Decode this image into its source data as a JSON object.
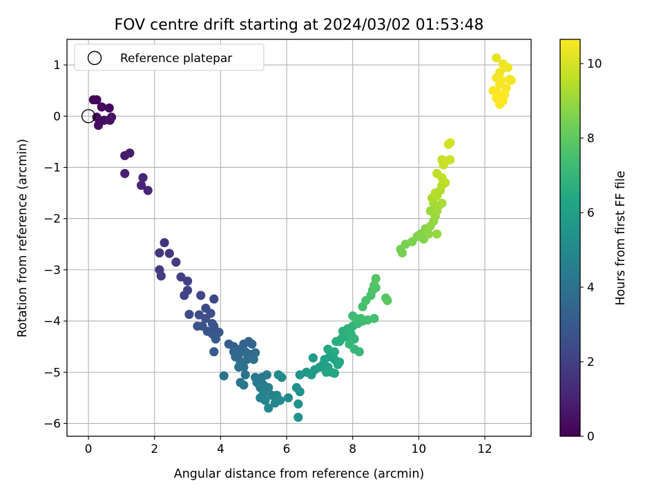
{
  "chart_data": {
    "type": "scatter",
    "title": "FOV centre drift starting at 2024/03/02 01:53:48",
    "xlabel": "Angular distance from reference (arcmin)",
    "ylabel": "Rotation from reference (arcmin)",
    "xlim": [
      -0.65,
      13.4
    ],
    "ylim": [
      -6.25,
      1.5
    ],
    "x_ticks": [
      "0",
      "2",
      "4",
      "6",
      "8",
      "10",
      "12"
    ],
    "y_ticks": [
      "1",
      "0",
      "−1",
      "−2",
      "−3",
      "−4",
      "−5",
      "−6"
    ],
    "grid": true,
    "legend": {
      "placement": "top-left",
      "label": "Reference platepar"
    },
    "reference_point": {
      "x": 0,
      "y": 0
    },
    "colorbar": {
      "label": "Hours from first FF file",
      "colormap": "viridis",
      "range": [
        0,
        10.65
      ],
      "ticks": [
        "0",
        "2",
        "4",
        "6",
        "8",
        "10"
      ]
    },
    "points": [
      {
        "x": 0.15,
        "y": 0.32,
        "t": 0.1
      },
      {
        "x": 0.25,
        "y": 0.32,
        "t": 0.15
      },
      {
        "x": 0.4,
        "y": 0.18,
        "t": 0.2
      },
      {
        "x": 0.63,
        "y": 0.16,
        "t": 0.25
      },
      {
        "x": 0.25,
        "y": -0.02,
        "t": 0.3
      },
      {
        "x": 0.35,
        "y": -0.1,
        "t": 0.35
      },
      {
        "x": 0.48,
        "y": -0.08,
        "t": 0.38
      },
      {
        "x": 0.3,
        "y": -0.18,
        "t": 0.4
      },
      {
        "x": 0.7,
        "y": -0.02,
        "t": 0.45
      },
      {
        "x": 0.65,
        "y": -0.08,
        "t": 0.5
      },
      {
        "x": 1.1,
        "y": -0.77,
        "t": 0.8
      },
      {
        "x": 1.25,
        "y": -0.72,
        "t": 0.85
      },
      {
        "x": 1.1,
        "y": -1.12,
        "t": 0.95
      },
      {
        "x": 1.65,
        "y": -1.2,
        "t": 1.05
      },
      {
        "x": 1.6,
        "y": -1.35,
        "t": 1.1
      },
      {
        "x": 1.8,
        "y": -1.45,
        "t": 1.15
      },
      {
        "x": 2.3,
        "y": -2.47,
        "t": 1.6
      },
      {
        "x": 2.15,
        "y": -2.67,
        "t": 1.65
      },
      {
        "x": 2.45,
        "y": -2.68,
        "t": 1.7
      },
      {
        "x": 2.65,
        "y": -2.85,
        "t": 1.8
      },
      {
        "x": 2.15,
        "y": -3.0,
        "t": 1.85
      },
      {
        "x": 2.2,
        "y": -3.12,
        "t": 1.9
      },
      {
        "x": 2.8,
        "y": -3.14,
        "t": 2.0
      },
      {
        "x": 3.0,
        "y": -3.22,
        "t": 2.05
      },
      {
        "x": 3.0,
        "y": -3.4,
        "t": 2.1
      },
      {
        "x": 2.9,
        "y": -3.5,
        "t": 2.15
      },
      {
        "x": 3.4,
        "y": -3.5,
        "t": 2.25
      },
      {
        "x": 3.8,
        "y": -3.57,
        "t": 2.3
      },
      {
        "x": 3.55,
        "y": -3.75,
        "t": 2.4
      },
      {
        "x": 3.35,
        "y": -3.88,
        "t": 2.45
      },
      {
        "x": 3.05,
        "y": -3.87,
        "t": 2.5
      },
      {
        "x": 3.7,
        "y": -3.85,
        "t": 2.55
      },
      {
        "x": 3.55,
        "y": -3.95,
        "t": 2.6
      },
      {
        "x": 3.75,
        "y": -4.05,
        "t": 2.65
      },
      {
        "x": 3.3,
        "y": -4.1,
        "t": 2.7
      },
      {
        "x": 3.45,
        "y": -4.1,
        "t": 2.75
      },
      {
        "x": 3.8,
        "y": -4.1,
        "t": 2.8
      },
      {
        "x": 3.6,
        "y": -4.2,
        "t": 2.85
      },
      {
        "x": 3.75,
        "y": -4.25,
        "t": 2.9
      },
      {
        "x": 3.95,
        "y": -4.22,
        "t": 2.95
      },
      {
        "x": 3.85,
        "y": -4.35,
        "t": 3.0
      },
      {
        "x": 3.8,
        "y": -4.6,
        "t": 3.05
      },
      {
        "x": 4.25,
        "y": -4.45,
        "t": 3.2
      },
      {
        "x": 4.4,
        "y": -4.5,
        "t": 3.25
      },
      {
        "x": 4.7,
        "y": -4.45,
        "t": 3.3
      },
      {
        "x": 4.85,
        "y": -4.4,
        "t": 3.35
      },
      {
        "x": 4.95,
        "y": -4.45,
        "t": 3.4
      },
      {
        "x": 4.6,
        "y": -4.55,
        "t": 3.45
      },
      {
        "x": 4.55,
        "y": -4.65,
        "t": 3.5
      },
      {
        "x": 4.4,
        "y": -4.6,
        "t": 3.55
      },
      {
        "x": 4.45,
        "y": -4.7,
        "t": 3.6
      },
      {
        "x": 4.75,
        "y": -4.6,
        "t": 3.65
      },
      {
        "x": 4.9,
        "y": -4.65,
        "t": 3.7
      },
      {
        "x": 5.05,
        "y": -4.62,
        "t": 3.75
      },
      {
        "x": 4.8,
        "y": -4.75,
        "t": 3.8
      },
      {
        "x": 4.6,
        "y": -4.8,
        "t": 3.85
      },
      {
        "x": 5.0,
        "y": -4.75,
        "t": 3.9
      },
      {
        "x": 4.7,
        "y": -4.9,
        "t": 3.95
      },
      {
        "x": 4.55,
        "y": -4.9,
        "t": 4.0
      },
      {
        "x": 4.1,
        "y": -5.07,
        "t": 4.05
      },
      {
        "x": 4.75,
        "y": -5.05,
        "t": 4.1
      },
      {
        "x": 5.05,
        "y": -5.1,
        "t": 4.15
      },
      {
        "x": 4.6,
        "y": -5.2,
        "t": 4.2
      },
      {
        "x": 4.7,
        "y": -5.25,
        "t": 4.25
      },
      {
        "x": 5.1,
        "y": -5.2,
        "t": 4.3
      },
      {
        "x": 5.25,
        "y": -5.1,
        "t": 4.35
      },
      {
        "x": 5.4,
        "y": -5.05,
        "t": 4.4
      },
      {
        "x": 5.3,
        "y": -5.25,
        "t": 4.45
      },
      {
        "x": 5.2,
        "y": -5.3,
        "t": 4.5
      },
      {
        "x": 5.45,
        "y": -5.3,
        "t": 4.55
      },
      {
        "x": 5.55,
        "y": -5.45,
        "t": 4.6
      },
      {
        "x": 5.3,
        "y": -5.4,
        "t": 4.65
      },
      {
        "x": 5.2,
        "y": -5.5,
        "t": 4.7
      },
      {
        "x": 5.35,
        "y": -5.55,
        "t": 4.75
      },
      {
        "x": 5.7,
        "y": -5.45,
        "t": 4.8
      },
      {
        "x": 5.65,
        "y": -5.6,
        "t": 4.85
      },
      {
        "x": 5.45,
        "y": -5.7,
        "t": 4.9
      },
      {
        "x": 5.8,
        "y": -5.55,
        "t": 4.95
      },
      {
        "x": 5.75,
        "y": -5.05,
        "t": 5.0
      },
      {
        "x": 5.85,
        "y": -5.1,
        "t": 5.05
      },
      {
        "x": 6.05,
        "y": -5.5,
        "t": 5.1
      },
      {
        "x": 6.3,
        "y": -5.3,
        "t": 5.3
      },
      {
        "x": 6.4,
        "y": -5.38,
        "t": 5.35
      },
      {
        "x": 6.35,
        "y": -5.62,
        "t": 5.4
      },
      {
        "x": 6.35,
        "y": -5.88,
        "t": 5.45
      },
      {
        "x": 6.4,
        "y": -5.05,
        "t": 5.5
      },
      {
        "x": 6.6,
        "y": -5.0,
        "t": 5.6
      },
      {
        "x": 6.75,
        "y": -5.05,
        "t": 5.7
      },
      {
        "x": 6.85,
        "y": -4.95,
        "t": 5.8
      },
      {
        "x": 6.8,
        "y": -4.72,
        "t": 5.85
      },
      {
        "x": 7.0,
        "y": -4.9,
        "t": 5.9
      },
      {
        "x": 7.1,
        "y": -4.85,
        "t": 5.95
      },
      {
        "x": 7.25,
        "y": -4.9,
        "t": 6.0
      },
      {
        "x": 7.15,
        "y": -4.75,
        "t": 6.05
      },
      {
        "x": 7.3,
        "y": -4.7,
        "t": 6.1
      },
      {
        "x": 7.45,
        "y": -4.75,
        "t": 6.15
      },
      {
        "x": 7.2,
        "y": -5.0,
        "t": 6.2
      },
      {
        "x": 7.35,
        "y": -5.0,
        "t": 6.25
      },
      {
        "x": 7.45,
        "y": -5.02,
        "t": 6.3
      },
      {
        "x": 7.55,
        "y": -4.85,
        "t": 6.35
      },
      {
        "x": 7.6,
        "y": -4.8,
        "t": 6.4
      },
      {
        "x": 7.25,
        "y": -4.55,
        "t": 6.45
      },
      {
        "x": 7.45,
        "y": -4.6,
        "t": 6.5
      },
      {
        "x": 7.6,
        "y": -4.4,
        "t": 6.55
      },
      {
        "x": 7.5,
        "y": -4.4,
        "t": 6.6
      },
      {
        "x": 7.65,
        "y": -4.35,
        "t": 6.65
      },
      {
        "x": 7.8,
        "y": -4.3,
        "t": 6.7
      },
      {
        "x": 7.7,
        "y": -4.2,
        "t": 6.75
      },
      {
        "x": 7.85,
        "y": -4.15,
        "t": 6.8
      },
      {
        "x": 8.0,
        "y": -4.1,
        "t": 6.85
      },
      {
        "x": 7.95,
        "y": -4.25,
        "t": 6.9
      },
      {
        "x": 8.05,
        "y": -4.35,
        "t": 6.95
      },
      {
        "x": 7.9,
        "y": -4.45,
        "t": 7.0
      },
      {
        "x": 8.05,
        "y": -4.55,
        "t": 7.05
      },
      {
        "x": 8.2,
        "y": -4.6,
        "t": 7.1
      },
      {
        "x": 8.15,
        "y": -4.05,
        "t": 7.15
      },
      {
        "x": 8.3,
        "y": -4.0,
        "t": 7.2
      },
      {
        "x": 8.0,
        "y": -3.9,
        "t": 7.25
      },
      {
        "x": 8.1,
        "y": -3.95,
        "t": 7.3
      },
      {
        "x": 8.25,
        "y": -3.95,
        "t": 7.35
      },
      {
        "x": 8.45,
        "y": -3.98,
        "t": 7.4
      },
      {
        "x": 8.65,
        "y": -3.95,
        "t": 7.45
      },
      {
        "x": 8.3,
        "y": -3.72,
        "t": 7.5
      },
      {
        "x": 8.4,
        "y": -3.6,
        "t": 7.55
      },
      {
        "x": 8.55,
        "y": -3.5,
        "t": 7.6
      },
      {
        "x": 8.6,
        "y": -3.4,
        "t": 7.65
      },
      {
        "x": 8.7,
        "y": -3.35,
        "t": 7.7
      },
      {
        "x": 8.65,
        "y": -3.3,
        "t": 7.75
      },
      {
        "x": 8.7,
        "y": -3.17,
        "t": 7.8
      },
      {
        "x": 9.0,
        "y": -3.55,
        "t": 7.85
      },
      {
        "x": 9.05,
        "y": -3.6,
        "t": 7.9
      },
      {
        "x": 9.45,
        "y": -2.6,
        "t": 8.4
      },
      {
        "x": 9.5,
        "y": -2.67,
        "t": 8.45
      },
      {
        "x": 9.6,
        "y": -2.5,
        "t": 8.5
      },
      {
        "x": 9.8,
        "y": -2.45,
        "t": 8.55
      },
      {
        "x": 9.95,
        "y": -2.35,
        "t": 8.6
      },
      {
        "x": 10.05,
        "y": -2.3,
        "t": 8.65
      },
      {
        "x": 10.15,
        "y": -2.4,
        "t": 8.7
      },
      {
        "x": 10.2,
        "y": -2.2,
        "t": 8.75
      },
      {
        "x": 10.3,
        "y": -2.3,
        "t": 8.8
      },
      {
        "x": 10.35,
        "y": -2.15,
        "t": 8.85
      },
      {
        "x": 10.45,
        "y": -2.05,
        "t": 8.9
      },
      {
        "x": 10.55,
        "y": -2.3,
        "t": 8.95
      },
      {
        "x": 10.5,
        "y": -1.95,
        "t": 9.0
      },
      {
        "x": 10.35,
        "y": -1.85,
        "t": 9.05
      },
      {
        "x": 10.55,
        "y": -1.85,
        "t": 9.1
      },
      {
        "x": 10.6,
        "y": -1.75,
        "t": 9.15
      },
      {
        "x": 10.45,
        "y": -1.7,
        "t": 9.2
      },
      {
        "x": 10.7,
        "y": -1.7,
        "t": 9.25
      },
      {
        "x": 10.4,
        "y": -1.6,
        "t": 9.3
      },
      {
        "x": 10.55,
        "y": -1.55,
        "t": 9.35
      },
      {
        "x": 10.65,
        "y": -1.45,
        "t": 9.4
      },
      {
        "x": 10.5,
        "y": -1.5,
        "t": 9.45
      },
      {
        "x": 10.7,
        "y": -1.35,
        "t": 9.5
      },
      {
        "x": 10.8,
        "y": -1.3,
        "t": 9.55
      },
      {
        "x": 10.7,
        "y": -1.2,
        "t": 9.6
      },
      {
        "x": 10.55,
        "y": -1.12,
        "t": 9.65
      },
      {
        "x": 10.75,
        "y": -0.95,
        "t": 9.7
      },
      {
        "x": 10.7,
        "y": -0.85,
        "t": 9.75
      },
      {
        "x": 10.85,
        "y": -0.87,
        "t": 9.8
      },
      {
        "x": 10.95,
        "y": -0.85,
        "t": 9.85
      },
      {
        "x": 10.9,
        "y": -0.55,
        "t": 9.9
      },
      {
        "x": 10.95,
        "y": -0.52,
        "t": 9.95
      },
      {
        "x": 12.35,
        "y": 1.14,
        "t": 10.3
      },
      {
        "x": 12.55,
        "y": 1.02,
        "t": 10.35
      },
      {
        "x": 12.6,
        "y": 0.95,
        "t": 10.38
      },
      {
        "x": 12.7,
        "y": 0.95,
        "t": 10.4
      },
      {
        "x": 12.45,
        "y": 0.85,
        "t": 10.42
      },
      {
        "x": 12.35,
        "y": 0.75,
        "t": 10.45
      },
      {
        "x": 12.5,
        "y": 0.7,
        "t": 10.48
      },
      {
        "x": 12.75,
        "y": 0.72,
        "t": 10.5
      },
      {
        "x": 12.8,
        "y": 0.7,
        "t": 10.52
      },
      {
        "x": 12.45,
        "y": 0.62,
        "t": 10.54
      },
      {
        "x": 12.65,
        "y": 0.55,
        "t": 10.56
      },
      {
        "x": 12.25,
        "y": 0.5,
        "t": 10.58
      },
      {
        "x": 12.4,
        "y": 0.45,
        "t": 10.6
      },
      {
        "x": 12.6,
        "y": 0.42,
        "t": 10.62
      },
      {
        "x": 12.35,
        "y": 0.35,
        "t": 10.63
      },
      {
        "x": 12.55,
        "y": 0.3,
        "t": 10.64
      },
      {
        "x": 12.45,
        "y": 0.23,
        "t": 10.65
      }
    ]
  }
}
